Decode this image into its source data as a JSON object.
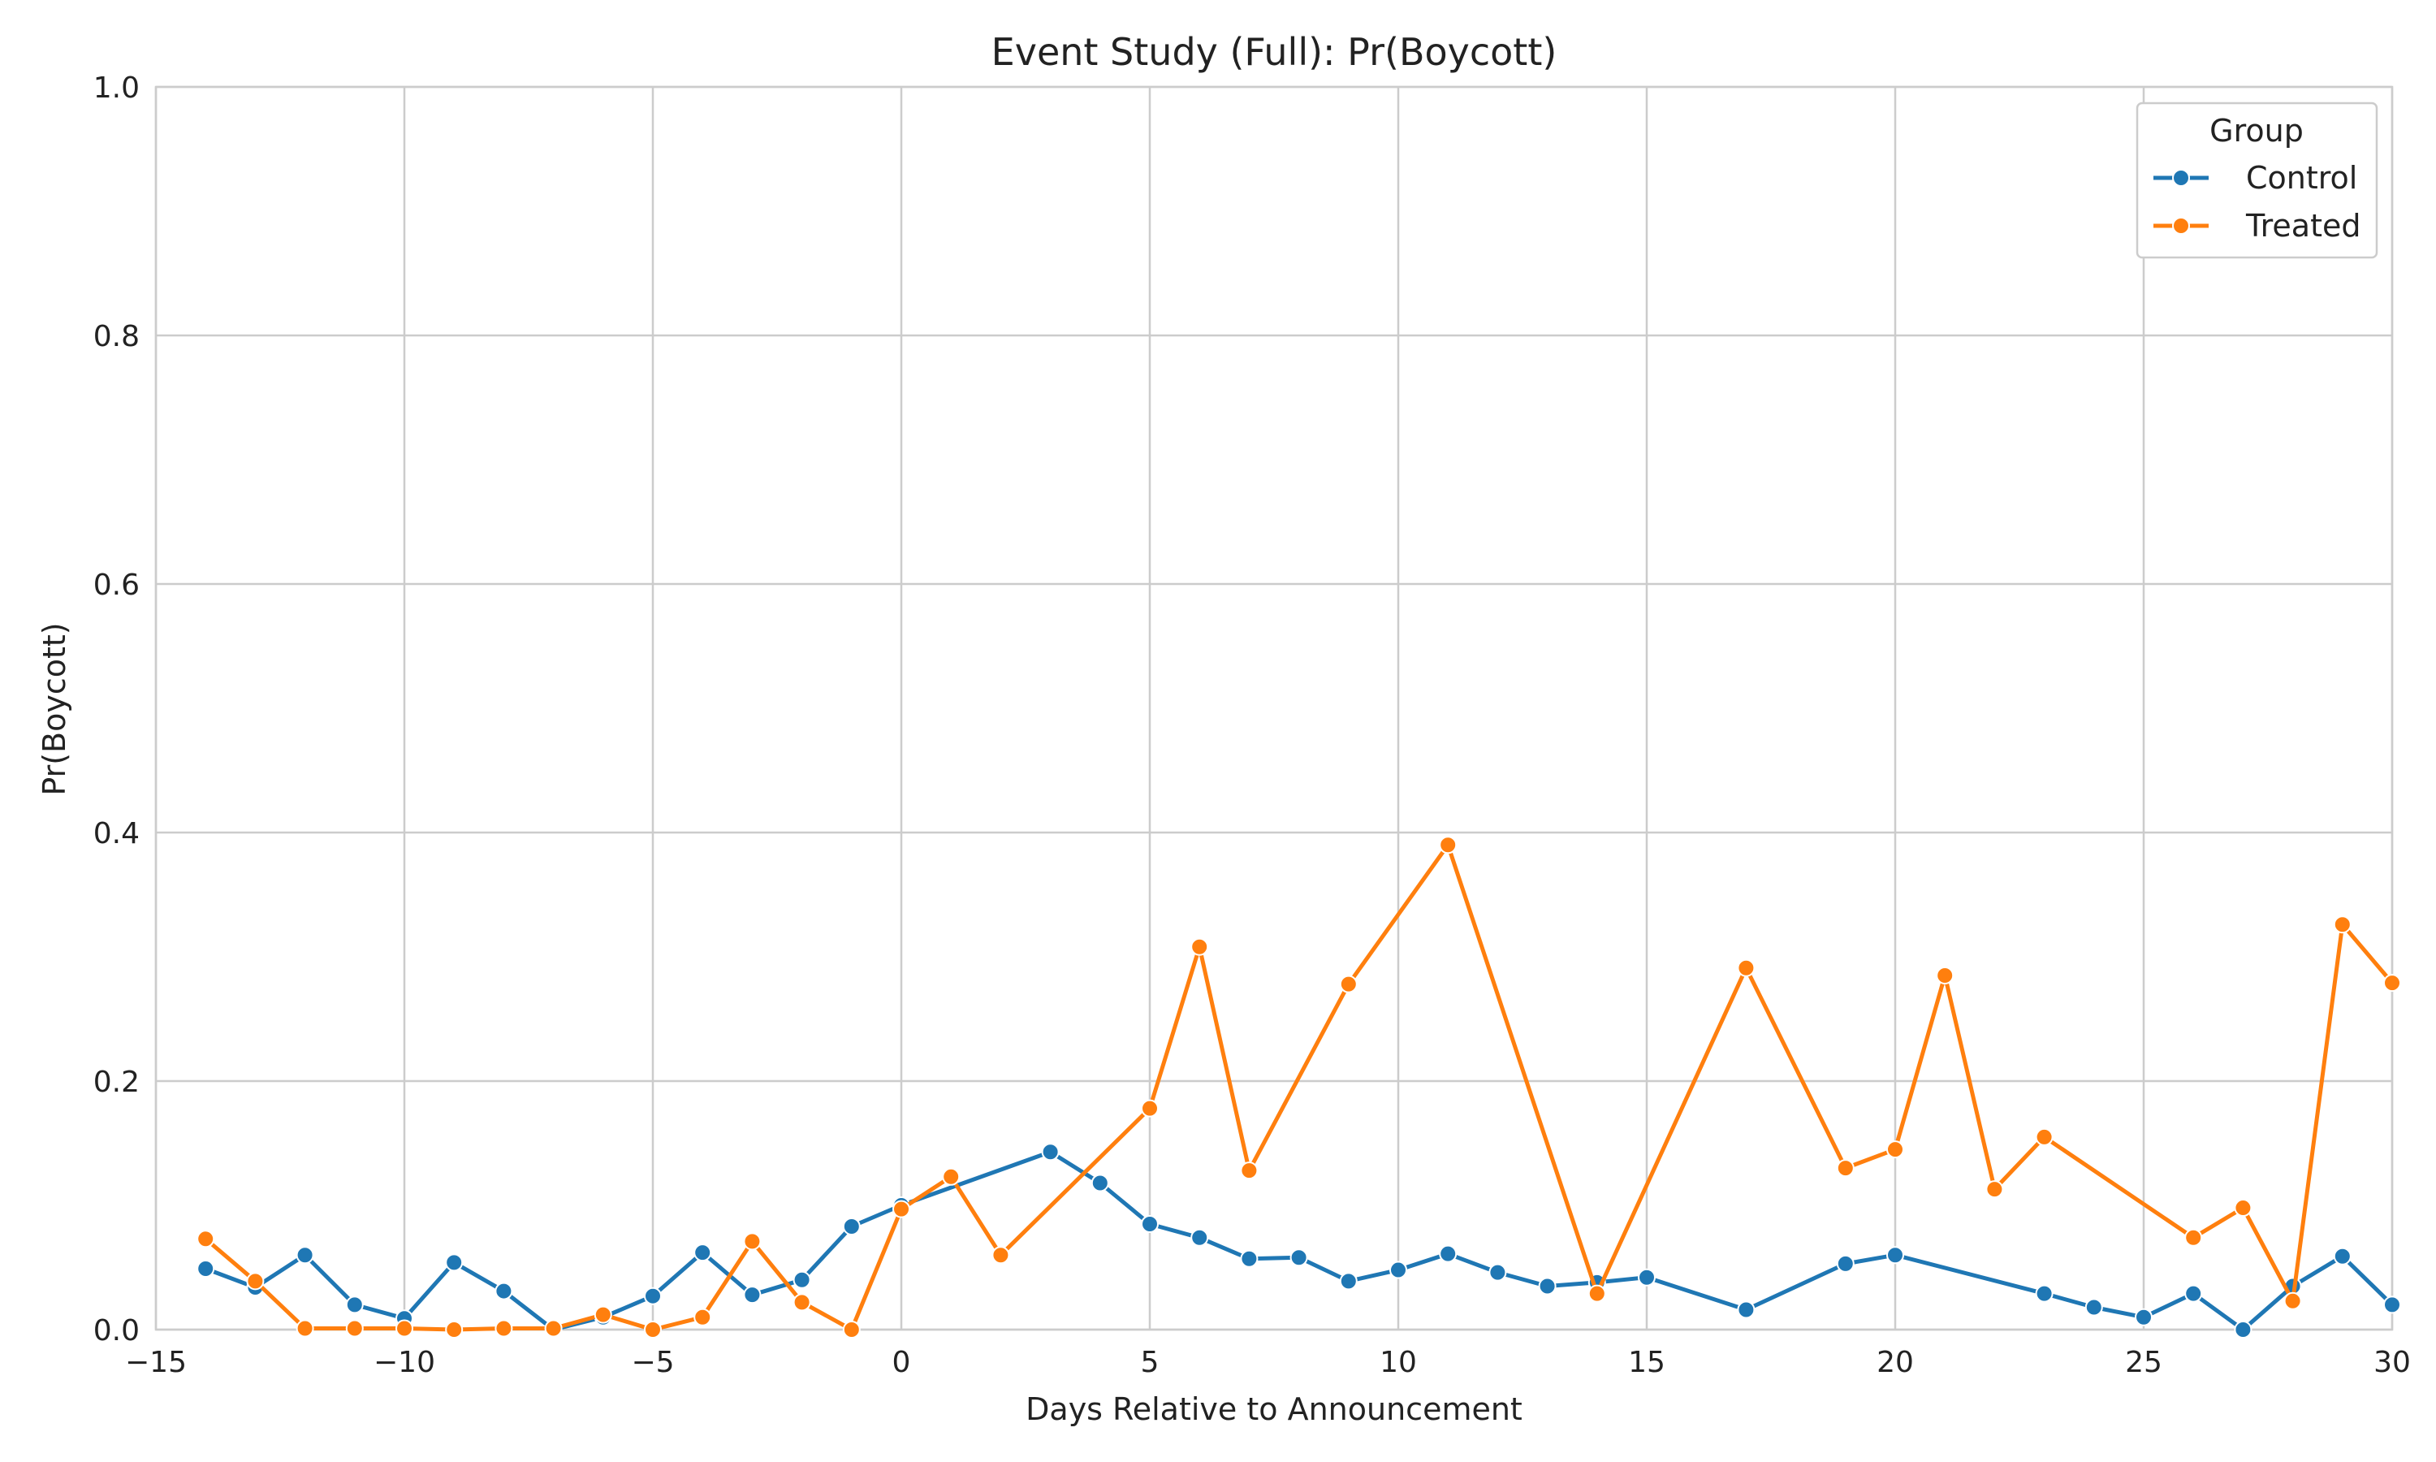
{
  "chart_data": {
    "type": "line",
    "title": "Event Study (Full): Pr(Boycott)",
    "xlabel": "Days Relative to Announcement",
    "ylabel": "Pr(Boycott)",
    "xlim": [
      -15,
      30
    ],
    "ylim": [
      0.0,
      1.0
    ],
    "x_ticks": [
      -15,
      -10,
      -5,
      0,
      5,
      10,
      15,
      20,
      25,
      30
    ],
    "x_tick_labels": [
      "−15",
      "−10",
      "−5",
      "0",
      "5",
      "10",
      "15",
      "20",
      "25",
      "30"
    ],
    "y_ticks": [
      0.0,
      0.2,
      0.4,
      0.6,
      0.8,
      1.0
    ],
    "y_tick_labels": [
      "0.0",
      "0.2",
      "0.4",
      "0.6",
      "0.8",
      "1.0"
    ],
    "grid": true,
    "legend": {
      "title": "Group",
      "placement": "top-right"
    },
    "series": [
      {
        "name": "Control",
        "color": "#1f77b4",
        "x": [
          -14,
          -13,
          -12,
          -11,
          -10,
          -9,
          -8,
          -7,
          -6,
          -5,
          -4,
          -3,
          -2,
          -1,
          0,
          3,
          4,
          5,
          6,
          7,
          8,
          9,
          10,
          11,
          12,
          13,
          14,
          15,
          17,
          19,
          20,
          23,
          24,
          25,
          26,
          27,
          28,
          29,
          30
        ],
        "values": [
          0.049,
          0.034,
          0.06,
          0.02,
          0.009,
          0.054,
          0.031,
          0.0,
          0.01,
          0.027,
          0.062,
          0.028,
          0.04,
          0.083,
          0.1,
          0.143,
          0.118,
          0.085,
          0.074,
          0.057,
          0.058,
          0.039,
          0.048,
          0.061,
          0.046,
          0.035,
          0.038,
          0.042,
          0.016,
          0.053,
          0.06,
          0.029,
          0.018,
          0.01,
          0.029,
          0.0,
          0.035,
          0.059,
          0.02
        ]
      },
      {
        "name": "Treated",
        "color": "#ff7f0e",
        "x": [
          -14,
          -13,
          -12,
          -11,
          -10,
          -9,
          -8,
          -7,
          -6,
          -5,
          -4,
          -3,
          -2,
          -1,
          0,
          1,
          2,
          5,
          6,
          7,
          9,
          11,
          14,
          17,
          19,
          20,
          21,
          22,
          23,
          26,
          27,
          28,
          29,
          30
        ],
        "values": [
          0.073,
          0.039,
          0.001,
          0.001,
          0.001,
          0.0,
          0.001,
          0.001,
          0.012,
          0.0,
          0.01,
          0.071,
          0.022,
          0.0,
          0.097,
          0.123,
          0.06,
          0.178,
          0.308,
          0.128,
          0.278,
          0.39,
          0.029,
          0.291,
          0.13,
          0.145,
          0.285,
          0.113,
          0.155,
          0.074,
          0.098,
          0.023,
          0.326,
          0.279
        ]
      }
    ]
  }
}
